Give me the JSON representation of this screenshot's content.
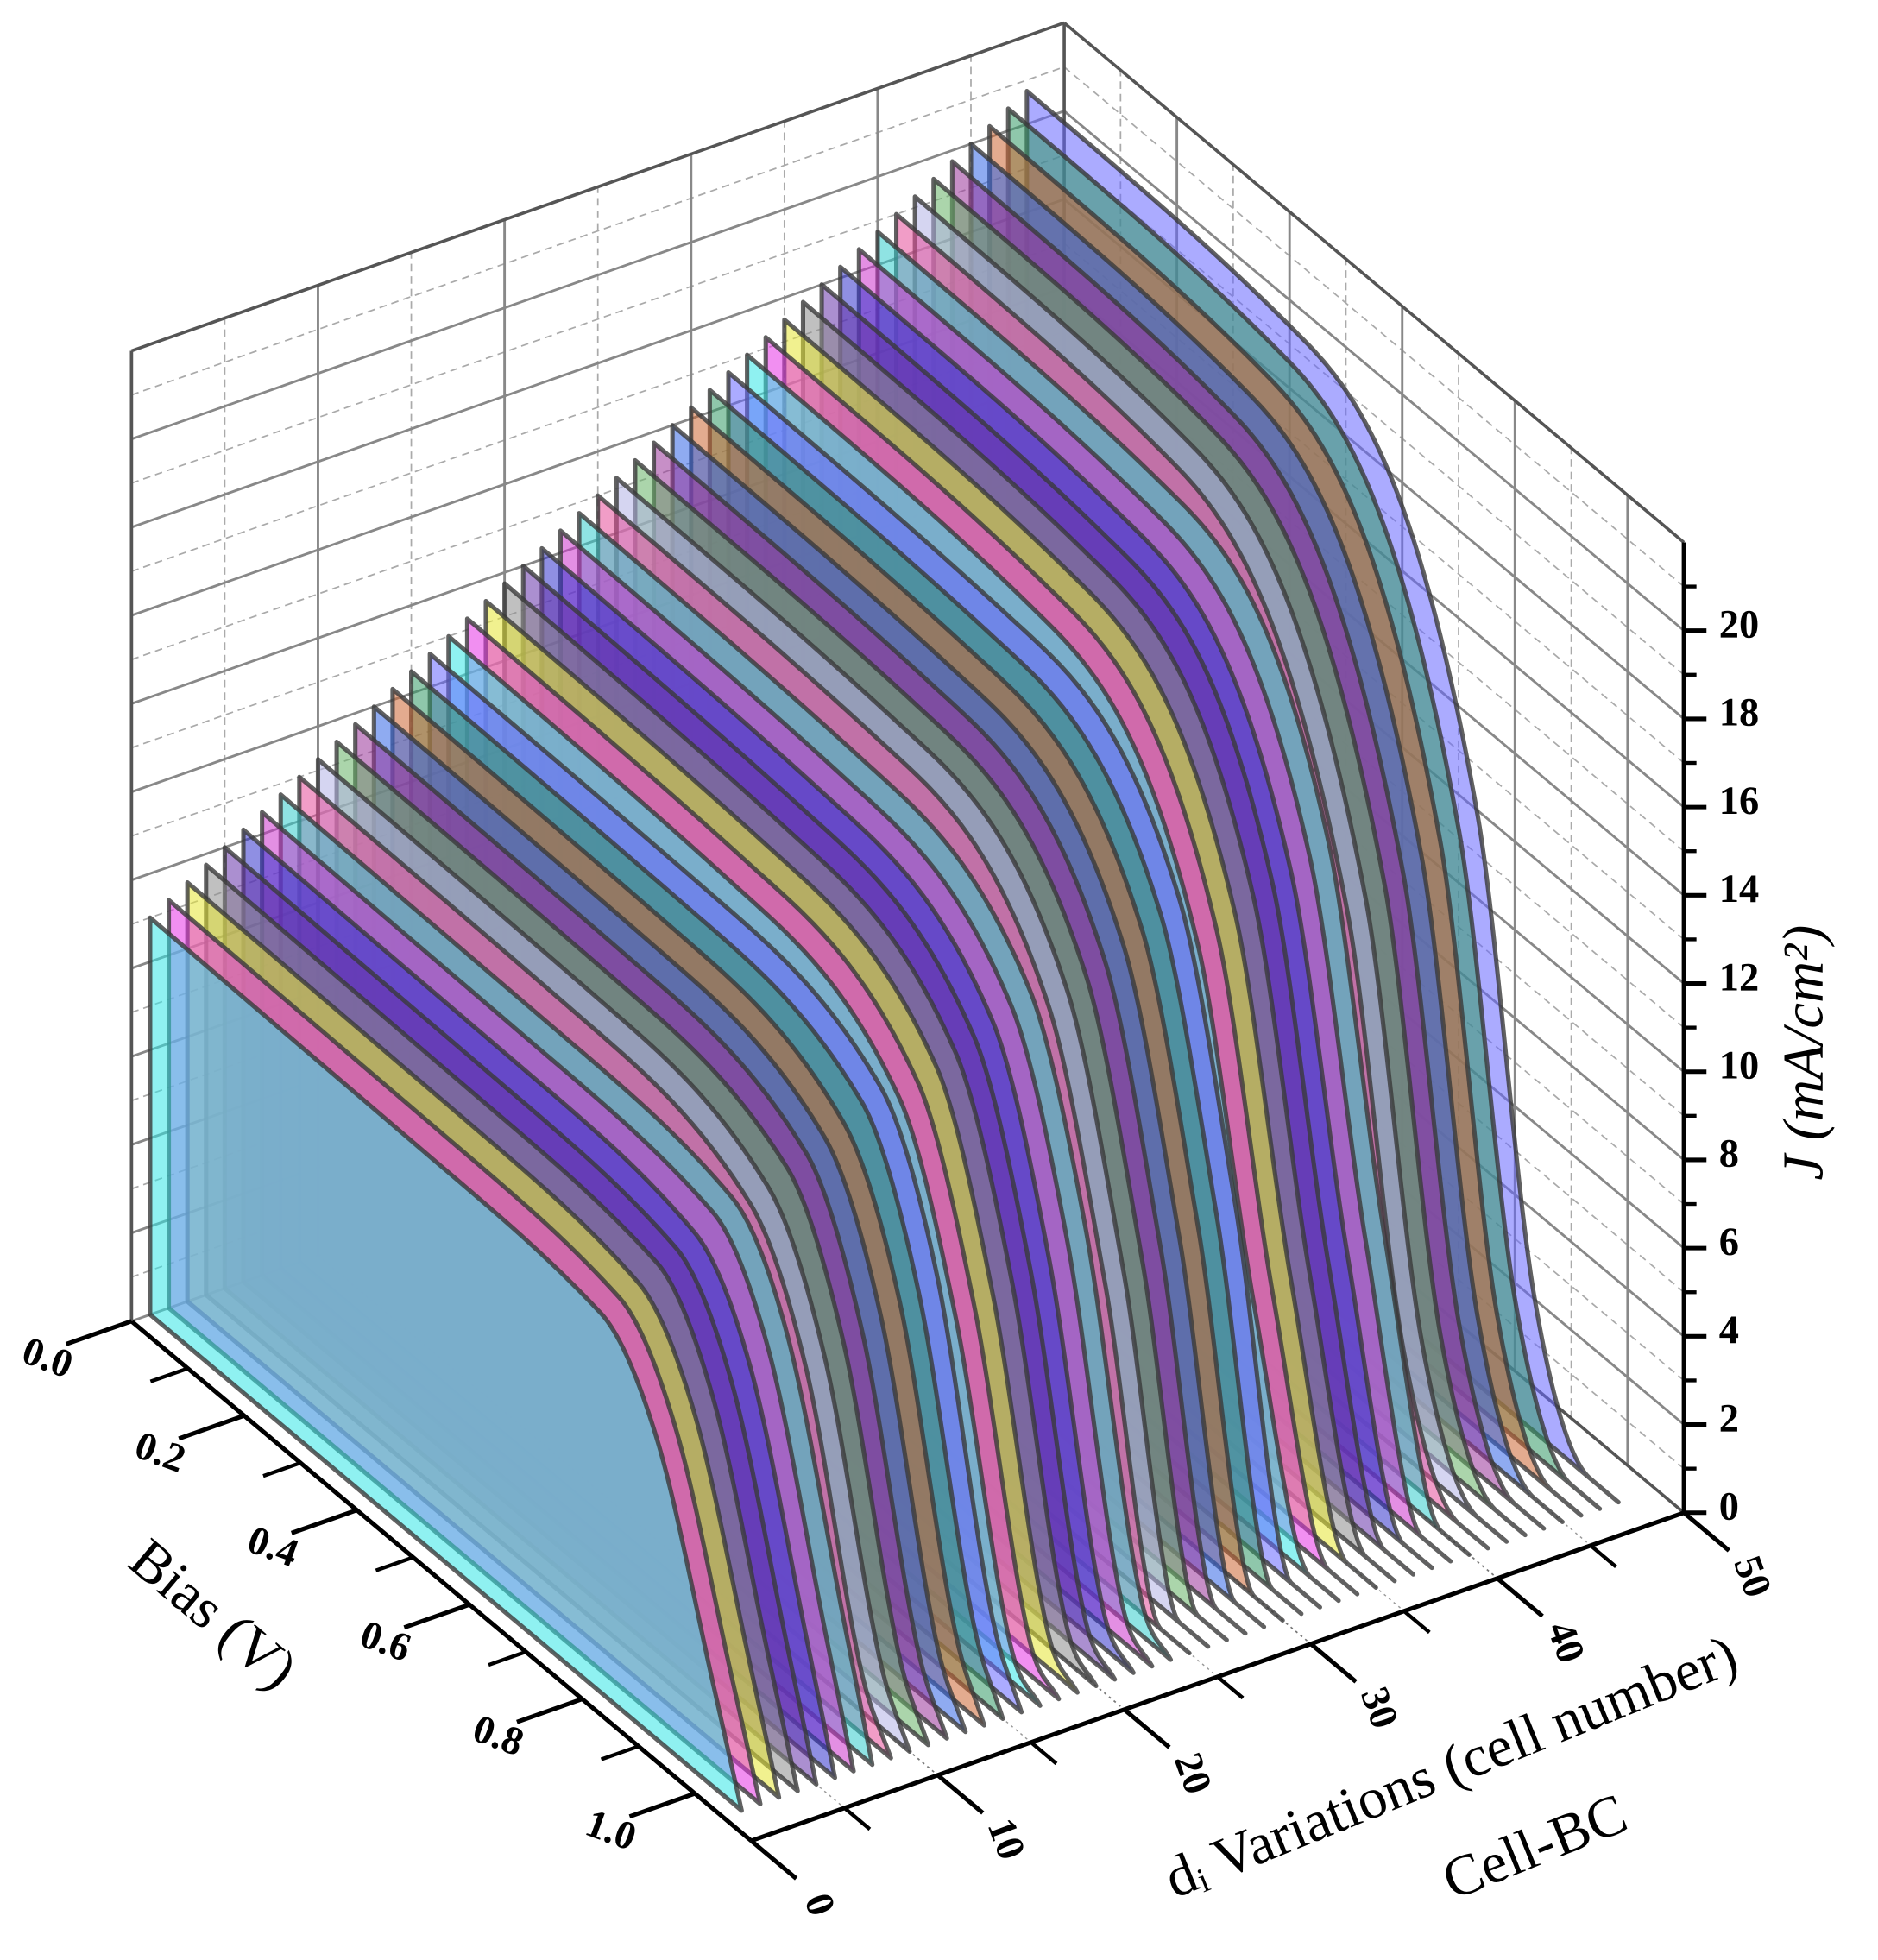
{
  "chart_data": {
    "type": "waterfall3d",
    "xlabel": "Bias (V)",
    "ylabel": "dᵢ Variations (cell number)",
    "zlabel": "J (mA/cm²)",
    "annotation": "Cell-BC",
    "xlim": [
      0,
      1.1
    ],
    "xticks": [
      {
        "value": 0,
        "label": "0.0"
      },
      0.2,
      0.4,
      0.6,
      0.8,
      {
        "value": 1,
        "label": "1.0"
      }
    ],
    "xminor": [
      0.1,
      0.3,
      0.5,
      0.7,
      0.9
    ],
    "ylim": [
      0,
      50
    ],
    "yticks": [
      0,
      10,
      20,
      30,
      40,
      50
    ],
    "yminor": [
      5,
      15,
      25,
      35,
      45
    ],
    "zlim": [
      0,
      22
    ],
    "zticks": [
      0,
      2,
      4,
      6,
      8,
      10,
      12,
      14,
      16,
      18,
      20
    ],
    "zminor": [
      1,
      3,
      5,
      7,
      9,
      11,
      13,
      15,
      17,
      19,
      21
    ],
    "grid": true,
    "opacity": 0.55,
    "x": [
      0,
      0.5,
      0.8,
      0.9,
      1.0,
      1.05
    ],
    "series": [
      {
        "cell": 1,
        "color": "#33e6e6",
        "values": [
          9,
          8.9,
          8.6,
          6.8,
          2.3,
          0
        ]
      },
      {
        "cell": 2,
        "color": "#e633e6",
        "values": [
          9.25,
          9.15,
          8.8,
          6.9,
          2.3,
          0
        ]
      },
      {
        "cell": 3,
        "color": "#e6e633",
        "values": [
          9.5,
          9.4,
          9.0,
          7.1,
          2.4,
          0
        ]
      },
      {
        "cell": 4,
        "color": "#8c8c8c",
        "values": [
          9.75,
          9.65,
          9.3,
          7.3,
          2.4,
          0
        ]
      },
      {
        "cell": 5,
        "color": "#6633aa",
        "values": [
          10,
          9.9,
          9.5,
          7.5,
          2.5,
          0
        ]
      },
      {
        "cell": 6,
        "color": "#3333cc",
        "values": [
          10.25,
          10.15,
          9.7,
          7.7,
          2.6,
          0
        ]
      },
      {
        "cell": 7,
        "color": "#cc33cc",
        "values": [
          10.5,
          10.4,
          10.0,
          7.9,
          2.6,
          0
        ]
      },
      {
        "cell": 8,
        "color": "#33cccc",
        "values": [
          10.75,
          10.65,
          10.2,
          8.1,
          2.7,
          0
        ]
      },
      {
        "cell": 9,
        "color": "#e64d99",
        "values": [
          11,
          10.9,
          9.9,
          7.2,
          1.3,
          0
        ]
      },
      {
        "cell": 10,
        "color": "#b3b3e6",
        "values": [
          11.25,
          11.15,
          10.1,
          7.3,
          1.4,
          0
        ]
      },
      {
        "cell": 11,
        "color": "#66b366",
        "values": [
          11.5,
          11.4,
          10.4,
          7.5,
          1.4,
          0
        ]
      },
      {
        "cell": 12,
        "color": "#993399",
        "values": [
          11.75,
          11.65,
          10.6,
          7.6,
          1.4,
          0
        ]
      },
      {
        "cell": 13,
        "color": "#3366e6",
        "values": [
          12,
          11.9,
          10.8,
          7.8,
          1.4,
          0
        ]
      },
      {
        "cell": 14,
        "color": "#cc6633",
        "values": [
          12.25,
          12.15,
          11.0,
          8.0,
          1.5,
          0
        ]
      },
      {
        "cell": 15,
        "color": "#339966",
        "values": [
          12.5,
          12.4,
          11.3,
          8.1,
          1.5,
          0
        ]
      },
      {
        "cell": 16,
        "color": "#6666ff",
        "values": [
          12.75,
          12.65,
          11.5,
          8.3,
          1.5,
          0
        ]
      },
      {
        "cell": 17,
        "color": "#33e6e6",
        "values": [
          13,
          12.8,
          11.1,
          7.2,
          0.7,
          0
        ]
      },
      {
        "cell": 18,
        "color": "#e633e6",
        "values": [
          13.25,
          13.05,
          11.3,
          7.3,
          0.7,
          0
        ]
      },
      {
        "cell": 19,
        "color": "#e6e633",
        "values": [
          13.5,
          13.3,
          11.5,
          7.4,
          0.7,
          0
        ]
      },
      {
        "cell": 20,
        "color": "#8c8c8c",
        "values": [
          13.75,
          13.55,
          11.7,
          7.6,
          0.7,
          0
        ]
      },
      {
        "cell": 21,
        "color": "#6633aa",
        "values": [
          14,
          13.8,
          11.9,
          7.7,
          0.7,
          0
        ]
      },
      {
        "cell": 22,
        "color": "#3333cc",
        "values": [
          14.25,
          14.05,
          12.1,
          7.8,
          0.7,
          0
        ]
      },
      {
        "cell": 23,
        "color": "#cc33cc",
        "values": [
          14.5,
          14.3,
          12.3,
          8.0,
          0.7,
          0
        ]
      },
      {
        "cell": 24,
        "color": "#33cccc",
        "values": [
          14.75,
          14.55,
          12.5,
          8.1,
          0.7,
          0
        ]
      },
      {
        "cell": 25,
        "color": "#e64d99",
        "values": [
          15,
          14.8,
          12,
          6.8,
          0,
          0
        ]
      },
      {
        "cell": 26,
        "color": "#b3b3e6",
        "values": [
          15.25,
          15.05,
          12.2,
          6.9,
          0,
          0
        ]
      },
      {
        "cell": 27,
        "color": "#66b366",
        "values": [
          15.5,
          15.3,
          12.4,
          7.0,
          0,
          0
        ]
      },
      {
        "cell": 28,
        "color": "#993399",
        "values": [
          15.75,
          15.55,
          12.6,
          7.1,
          0,
          0
        ]
      },
      {
        "cell": 29,
        "color": "#3366e6",
        "values": [
          16,
          15.8,
          12.8,
          7.2,
          0,
          0
        ]
      },
      {
        "cell": 30,
        "color": "#cc6633",
        "values": [
          16.25,
          16.05,
          13,
          7.3,
          0,
          0
        ]
      },
      {
        "cell": 31,
        "color": "#339966",
        "values": [
          16.5,
          16.3,
          13.2,
          7.4,
          0,
          0
        ]
      },
      {
        "cell": 32,
        "color": "#6666ff",
        "values": [
          16.75,
          16.55,
          13.4,
          7.5,
          0,
          0
        ]
      },
      {
        "cell": 33,
        "color": "#33e6e6",
        "values": [
          17,
          16.7,
          12.2,
          5.1,
          0,
          0
        ]
      },
      {
        "cell": 34,
        "color": "#e633e6",
        "values": [
          17.25,
          16.95,
          12.4,
          5.2,
          0,
          0
        ]
      },
      {
        "cell": 35,
        "color": "#e6e633",
        "values": [
          17.5,
          17.2,
          12.6,
          5.3,
          0,
          0
        ]
      },
      {
        "cell": 36,
        "color": "#8c8c8c",
        "values": [
          17.75,
          17.45,
          12.8,
          5.3,
          0,
          0
        ]
      },
      {
        "cell": 37,
        "color": "#6633aa",
        "values": [
          18,
          17.7,
          13,
          5.4,
          0,
          0
        ]
      },
      {
        "cell": 38,
        "color": "#3333cc",
        "values": [
          18.25,
          17.95,
          13.1,
          5.5,
          0,
          0
        ]
      },
      {
        "cell": 39,
        "color": "#cc33cc",
        "values": [
          18.5,
          18.2,
          13.3,
          5.6,
          0,
          0
        ]
      },
      {
        "cell": 40,
        "color": "#33cccc",
        "values": [
          18.75,
          18.45,
          13.5,
          5.6,
          0,
          0
        ]
      },
      {
        "cell": 41,
        "color": "#e64d99",
        "values": [
          19,
          18.6,
          11.8,
          2.9,
          0,
          0
        ]
      },
      {
        "cell": 42,
        "color": "#b3b3e6",
        "values": [
          19.25,
          18.85,
          11.9,
          2.9,
          0,
          0
        ]
      },
      {
        "cell": 43,
        "color": "#66b366",
        "values": [
          19.5,
          19.1,
          12.1,
          2.9,
          0,
          0
        ]
      },
      {
        "cell": 44,
        "color": "#993399",
        "values": [
          19.75,
          19.35,
          12.2,
          3.0,
          0,
          0
        ]
      },
      {
        "cell": 45,
        "color": "#3366e6",
        "values": [
          20,
          19.6,
          12.4,
          3,
          0,
          0
        ]
      },
      {
        "cell": 46,
        "color": "#cc6633",
        "values": [
          20.25,
          19.85,
          12.6,
          3.0,
          0,
          0
        ]
      },
      {
        "cell": 47,
        "color": "#339966",
        "values": [
          20.5,
          20.1,
          12.7,
          3.1,
          0,
          0
        ]
      },
      {
        "cell": 48,
        "color": "#6666ff",
        "values": [
          20.75,
          20.35,
          12.9,
          3.1,
          0,
          0
        ]
      }
    ]
  }
}
